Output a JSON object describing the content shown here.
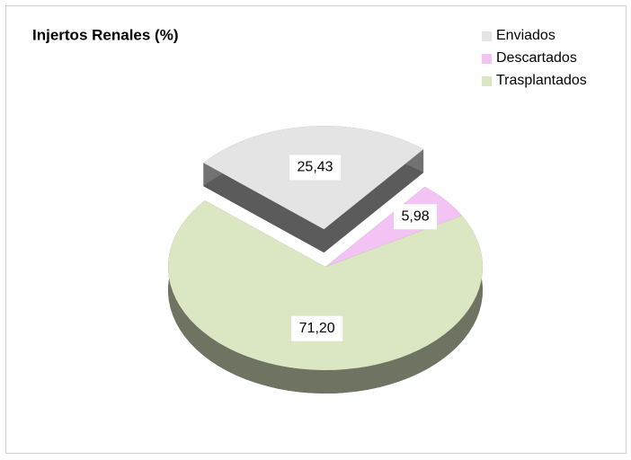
{
  "chart_data": {
    "type": "pie",
    "title": "Injertos Renales (%)",
    "categories": [
      "Enviados",
      "Descartados",
      "Trasplantados"
    ],
    "values": [
      25.43,
      5.98,
      71.2
    ],
    "value_labels": [
      "25,43",
      "5,98",
      "71,20"
    ],
    "colors": [
      "#e4e4e4",
      "#f3c4f3",
      "#dbe6c3"
    ],
    "exploded": [
      "Enviados"
    ],
    "legend": "top-right"
  }
}
